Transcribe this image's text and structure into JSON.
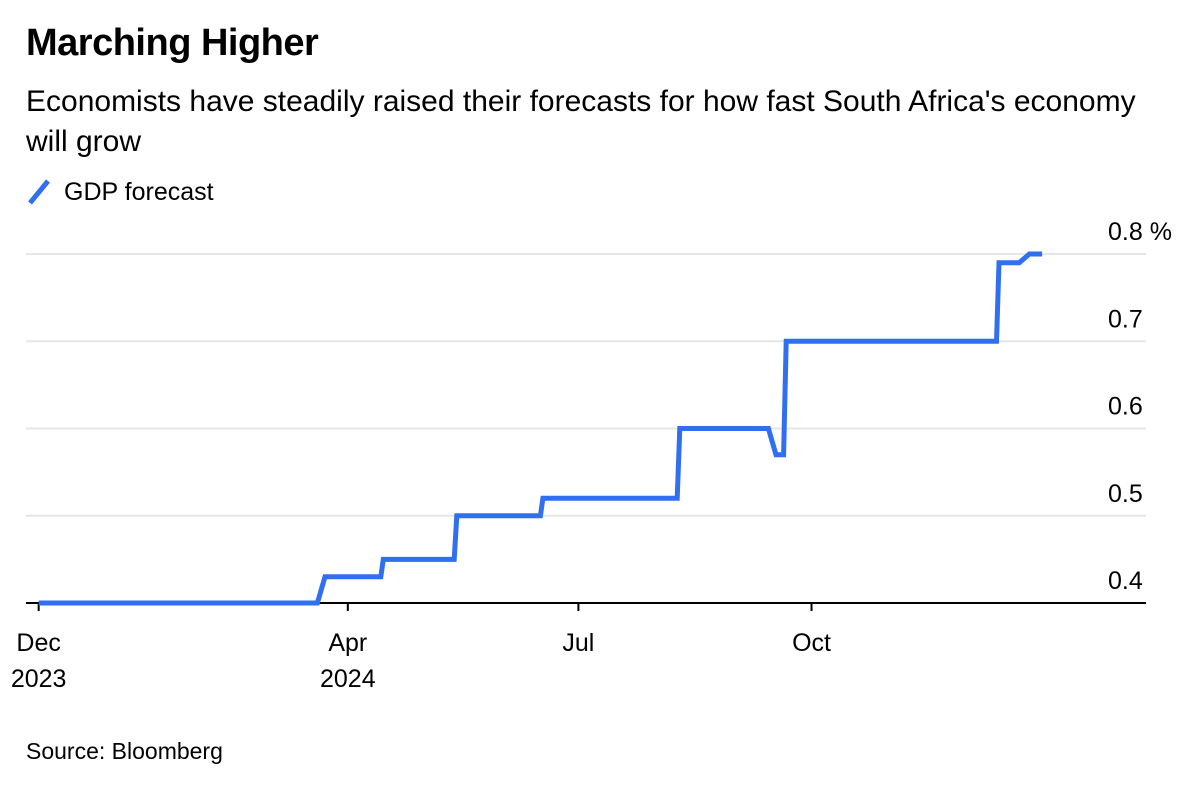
{
  "header": {
    "title": "Marching Higher",
    "subtitle": "Economists have steadily raised their forecasts for how fast South Africa's economy will grow"
  },
  "legend": {
    "label": "GDP forecast",
    "color": "#2f6ff0"
  },
  "footer": {
    "source": "Source: Bloomberg"
  },
  "chart_data": {
    "type": "line",
    "title": "Marching Higher",
    "subtitle": "Economists have steadily raised their forecasts for how fast South Africa's economy will grow",
    "xlabel": "",
    "ylabel": "",
    "x_range": [
      "2023-11-26",
      "2025-02-10"
    ],
    "ylim": [
      0.4,
      0.8
    ],
    "y_ticks": [
      {
        "value": 0.8,
        "label": "0.8 %"
      },
      {
        "value": 0.7,
        "label": "0.7"
      },
      {
        "value": 0.6,
        "label": "0.6"
      },
      {
        "value": 0.5,
        "label": "0.5"
      },
      {
        "value": 0.4,
        "label": "0.4"
      }
    ],
    "x_ticks": [
      {
        "date": "2023-12-01",
        "label": "Dec",
        "label2": "2023"
      },
      {
        "date": "2024-04-01",
        "label": "Apr",
        "label2": "2024"
      },
      {
        "date": "2024-07-01",
        "label": "Jul",
        "label2": ""
      },
      {
        "date": "2024-10-01",
        "label": "Oct",
        "label2": ""
      }
    ],
    "grid": true,
    "step": true,
    "series": [
      {
        "name": "GDP forecast",
        "color": "#2f6ff0",
        "points": [
          [
            "2023-12-01",
            0.4
          ],
          [
            "2024-03-20",
            0.4
          ],
          [
            "2024-03-23",
            0.43
          ],
          [
            "2024-04-14",
            0.43
          ],
          [
            "2024-04-15",
            0.45
          ],
          [
            "2024-05-13",
            0.45
          ],
          [
            "2024-05-14",
            0.5
          ],
          [
            "2024-06-16",
            0.5
          ],
          [
            "2024-06-17",
            0.52
          ],
          [
            "2024-08-09",
            0.52
          ],
          [
            "2024-08-10",
            0.6
          ],
          [
            "2024-09-14",
            0.6
          ],
          [
            "2024-09-17",
            0.57
          ],
          [
            "2024-09-20",
            0.57
          ],
          [
            "2024-09-21",
            0.7
          ],
          [
            "2024-12-13",
            0.7
          ],
          [
            "2024-12-14",
            0.79
          ],
          [
            "2024-12-22",
            0.79
          ],
          [
            "2024-12-26",
            0.8
          ],
          [
            "2024-12-31",
            0.8
          ]
        ]
      }
    ]
  }
}
